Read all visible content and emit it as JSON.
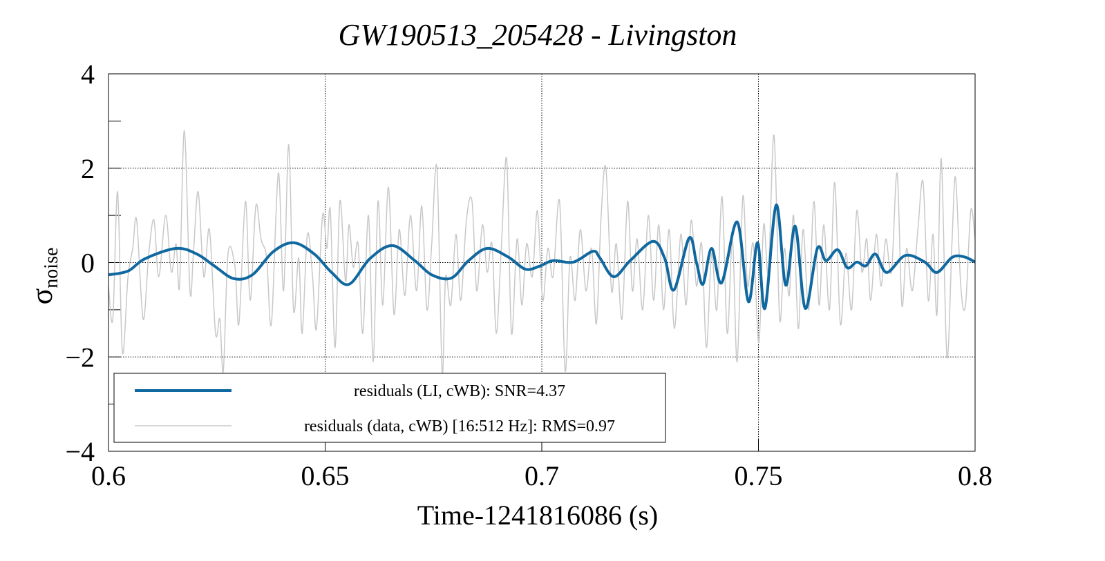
{
  "chart_data": {
    "type": "line",
    "title": "GW190513_205428 - Livingston",
    "xlabel": "Time-1241816086 (s)",
    "ylabel": "σ",
    "ylabel_subscript": "noise",
    "xlim": [
      0.6,
      0.8
    ],
    "ylim": [
      -4,
      4
    ],
    "xticks": [
      0.6,
      0.65,
      0.7,
      0.75,
      0.8
    ],
    "yticks": [
      {
        "value": -4,
        "label": "−4"
      },
      {
        "value": -2,
        "label": "−2"
      },
      0,
      2,
      4
    ],
    "yminorticks": [
      -3,
      -1,
      1,
      3
    ],
    "grid": true,
    "legend": "lower left",
    "series": [
      {
        "name": "residuals (data, cWB) [16:512 Hz]: RMS=0.97",
        "color": "#c8c8c8",
        "linewidth": 1.5,
        "x": [
          0.6,
          0.601,
          0.6021,
          0.6032,
          0.6045,
          0.6056,
          0.6065,
          0.608,
          0.6093,
          0.6105,
          0.6116,
          0.6132,
          0.6145,
          0.6156,
          0.6164,
          0.6175,
          0.6188,
          0.6196,
          0.6207,
          0.622,
          0.6233,
          0.6247,
          0.6257,
          0.6265,
          0.6276,
          0.6292,
          0.6301,
          0.6316,
          0.6327,
          0.634,
          0.6352,
          0.6365,
          0.6376,
          0.6392,
          0.6404,
          0.6416,
          0.6427,
          0.6439,
          0.6447,
          0.6459,
          0.6471,
          0.648,
          0.6494,
          0.6504,
          0.6512,
          0.6523,
          0.6534,
          0.6547,
          0.6555,
          0.6565,
          0.6576,
          0.6587,
          0.66,
          0.6611,
          0.6622,
          0.6633,
          0.6646,
          0.6659,
          0.6671,
          0.6684,
          0.6697,
          0.6711,
          0.6723,
          0.6735,
          0.6746,
          0.6758,
          0.677,
          0.6778,
          0.679,
          0.6802,
          0.6813,
          0.6826,
          0.6839,
          0.685,
          0.6863,
          0.6874,
          0.6885,
          0.6895,
          0.6906,
          0.6919,
          0.693,
          0.6943,
          0.6954,
          0.6965,
          0.6978,
          0.699,
          0.7002,
          0.7014,
          0.7026,
          0.7041,
          0.7054,
          0.7065,
          0.7077,
          0.7089,
          0.7102,
          0.7115,
          0.7126,
          0.7137,
          0.7148,
          0.7161,
          0.7172,
          0.7185,
          0.7198,
          0.7209,
          0.722,
          0.7233,
          0.7246,
          0.7258,
          0.727,
          0.7281,
          0.7294,
          0.7306,
          0.7321,
          0.7333,
          0.7345,
          0.7357,
          0.7369,
          0.738,
          0.7392,
          0.7404,
          0.7416,
          0.7428,
          0.744,
          0.7451,
          0.7464,
          0.7475,
          0.7488,
          0.7501,
          0.7512,
          0.7523,
          0.7536,
          0.7549,
          0.756,
          0.7571,
          0.7581,
          0.7592,
          0.7603,
          0.7616,
          0.7628,
          0.764,
          0.7651,
          0.7664,
          0.7676,
          0.7689,
          0.7702,
          0.7715,
          0.7727,
          0.7739,
          0.775,
          0.7759,
          0.7772,
          0.7783,
          0.7794,
          0.7807,
          0.782,
          0.7831,
          0.7842,
          0.7855,
          0.7868,
          0.788,
          0.7892,
          0.7903,
          0.7912,
          0.7922,
          0.7935,
          0.7947,
          0.7955,
          0.7967,
          0.7978,
          0.799,
          0.8
        ],
        "values": [
          -0.5,
          -1.2,
          1.5,
          -1.9,
          -0.3,
          0.3,
          0.9,
          -1.2,
          0.2,
          0.9,
          -0.3,
          1.0,
          -0.2,
          0.4,
          -0.5,
          2.8,
          -0.6,
          0.2,
          1.5,
          -0.3,
          0.7,
          -1.5,
          -1.2,
          -2.3,
          0.2,
          -0.1,
          -1.3,
          1.3,
          -0.8,
          1.2,
          0.5,
          0.1,
          -1.3,
          1.9,
          -0.6,
          2.5,
          -1.0,
          0.1,
          -1.5,
          0.6,
          -0.3,
          -1.4,
          1.0,
          0.3,
          1.1,
          -1.8,
          1.3,
          -0.4,
          0.8,
          -0.1,
          0.4,
          -1.5,
          1.0,
          -2.1,
          1.3,
          -0.9,
          1.6,
          -1.1,
          0.7,
          -0.7,
          1.0,
          -0.6,
          1.2,
          -1.0,
          0.4,
          2.0,
          -2.3,
          -0.3,
          -0.9,
          0.6,
          -0.8,
          0.9,
          1.3,
          -0.6,
          0.8,
          -0.2,
          0.4,
          -1.5,
          0.2,
          2.2,
          -1.5,
          0.5,
          -0.9,
          0.4,
          -0.3,
          1.1,
          -0.8,
          0.3,
          -0.3,
          1.3,
          -2.3,
          0.1,
          -0.8,
          0.7,
          -0.6,
          0.3,
          -1.3,
          1.0,
          2.0,
          -0.6,
          0.4,
          -1.2,
          1.3,
          -0.6,
          0.5,
          -1.0,
          1.0,
          -0.8,
          0.8,
          -1.0,
          0.7,
          -1.4,
          0.6,
          -0.9,
          0.9,
          -0.5,
          0.4,
          -1.8,
          0.2,
          -1.0,
          1.4,
          -1.5,
          0.5,
          -2.1,
          1.4,
          -0.5,
          0.4,
          -1.7,
          0.8,
          -0.2,
          2.7,
          -1.2,
          0.3,
          -0.7,
          1.0,
          -1.4,
          0.7,
          -1.0,
          1.3,
          -0.9,
          0.8,
          -1.0,
          1.7,
          -1.3,
          0.2,
          -1.0,
          1.1,
          -0.2,
          0.5,
          -0.8,
          0.6,
          -0.5,
          0.5,
          -0.2,
          1.9,
          -0.9,
          0.3,
          -0.6,
          0.7,
          1.7,
          -0.8,
          0.6,
          -1.1,
          2.2,
          -2.0,
          0.5,
          1.8,
          -0.5,
          -0.9,
          1.1,
          0.5
        ]
      },
      {
        "name": "residuals (LI, cWB): SNR=4.37",
        "color": "#1068a0",
        "linewidth": 4,
        "x": [
          0.6,
          0.6045,
          0.6084,
          0.6156,
          0.6204,
          0.6244,
          0.6289,
          0.6332,
          0.638,
          0.6427,
          0.6475,
          0.6515,
          0.6555,
          0.6603,
          0.6655,
          0.6707,
          0.6746,
          0.6791,
          0.6831,
          0.6874,
          0.6922,
          0.6962,
          0.6994,
          0.7026,
          0.7073,
          0.7118,
          0.7134,
          0.7166,
          0.7204,
          0.7257,
          0.7284,
          0.7305,
          0.734,
          0.7357,
          0.7372,
          0.7392,
          0.7415,
          0.7451,
          0.7477,
          0.7498,
          0.7515,
          0.7541,
          0.7563,
          0.7585,
          0.7608,
          0.7636,
          0.7656,
          0.7683,
          0.7705,
          0.7727,
          0.7748,
          0.777,
          0.7796,
          0.7839,
          0.7884,
          0.7912,
          0.7947,
          0.7975,
          0.8
        ],
        "values": [
          -0.26,
          -0.18,
          0.08,
          0.3,
          0.18,
          -0.07,
          -0.34,
          -0.26,
          0.23,
          0.42,
          0.18,
          -0.21,
          -0.46,
          0.08,
          0.36,
          0.04,
          -0.26,
          -0.33,
          0.04,
          0.3,
          0.12,
          -0.14,
          -0.08,
          0.04,
          0.01,
          0.24,
          0.1,
          -0.3,
          0.04,
          0.45,
          0.08,
          -0.58,
          0.52,
          0.0,
          -0.46,
          0.3,
          -0.43,
          0.86,
          -0.83,
          0.42,
          -0.97,
          1.22,
          -0.48,
          0.77,
          -0.97,
          0.3,
          0.04,
          0.27,
          -0.11,
          0.01,
          -0.07,
          0.18,
          -0.21,
          0.15,
          0.01,
          -0.21,
          0.11,
          0.12,
          0.01
        ]
      }
    ]
  }
}
